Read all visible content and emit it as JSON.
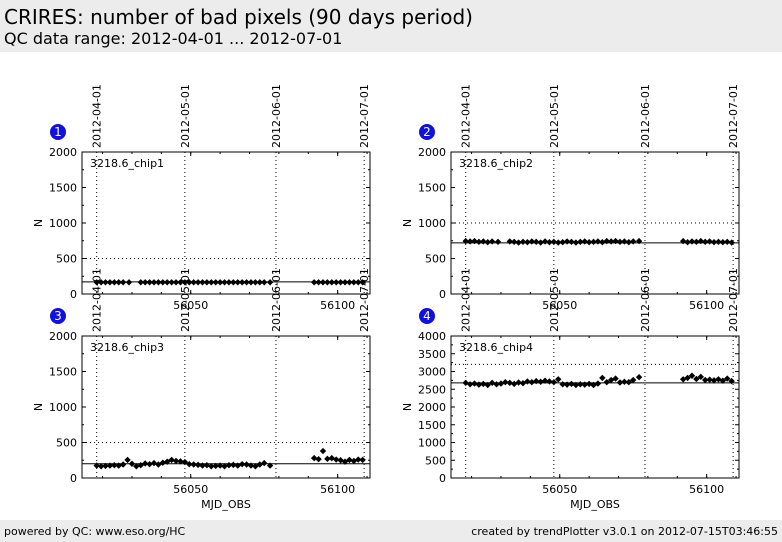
{
  "header": {
    "title": "CRIRES: number of bad pixels (90 days period)",
    "subtitle": "QC data range: 2012-04-01 ... 2012-07-01"
  },
  "footer": {
    "left": "powered by QC: www.eso.org/HC",
    "right": "created by trendPlotter v3.0.1 on 2012-07-15T03:46:55"
  },
  "colors": {
    "marker": "#000000",
    "badge": "#1010e0",
    "header_bg": "#ececec"
  },
  "chart_data": [
    {
      "type": "scatter",
      "badge": "1",
      "label": "3218.6_chip1",
      "ylabel": "N",
      "xlabel": "",
      "xlim": [
        56013,
        56111
      ],
      "ylim": [
        0,
        2000
      ],
      "yticks": [
        0,
        500,
        1000,
        1500,
        2000
      ],
      "xticks": [
        56050,
        56100
      ],
      "date_markers": [
        {
          "label": "2012-04-01",
          "x": 56018
        },
        {
          "label": "2012-05-01",
          "x": 56048
        },
        {
          "label": "2012-06-01",
          "x": 56079
        },
        {
          "label": "2012-07-01",
          "x": 56109
        }
      ],
      "reference_line": 170,
      "threshold_line": 500,
      "x": [
        56018,
        56019.5,
        56021,
        56022.5,
        56024,
        56025.5,
        56027,
        56029,
        56033,
        56034.5,
        56036,
        56037.5,
        56039,
        56040.5,
        56042,
        56043.5,
        56045,
        56046.5,
        56048,
        56049.5,
        56051,
        56052.5,
        56054,
        56055.5,
        56057,
        56058.5,
        56060,
        56061.5,
        56063,
        56064.5,
        56066,
        56067.5,
        56069,
        56070.5,
        56072,
        56073.5,
        56075,
        56077,
        56092,
        56093.5,
        56095,
        56096.5,
        56098,
        56099.5,
        56101,
        56102.5,
        56104,
        56105.5,
        56107,
        56108.5
      ],
      "y": [
        165,
        165,
        165,
        165,
        165,
        165,
        165,
        165,
        165,
        165,
        165,
        165,
        165,
        165,
        165,
        165,
        165,
        165,
        165,
        165,
        165,
        165,
        165,
        165,
        165,
        165,
        165,
        165,
        165,
        165,
        165,
        165,
        165,
        165,
        165,
        165,
        165,
        165,
        165,
        165,
        165,
        165,
        165,
        165,
        165,
        165,
        165,
        165,
        165,
        165
      ]
    },
    {
      "type": "scatter",
      "badge": "2",
      "label": "3218.6_chip2",
      "ylabel": "N",
      "xlabel": "",
      "xlim": [
        56013,
        56111
      ],
      "ylim": [
        0,
        2000
      ],
      "yticks": [
        0,
        500,
        1000,
        1500,
        2000
      ],
      "xticks": [
        56050,
        56100
      ],
      "date_markers": [
        {
          "label": "2012-04-01",
          "x": 56018
        },
        {
          "label": "2012-05-01",
          "x": 56048
        },
        {
          "label": "2012-06-01",
          "x": 56079
        },
        {
          "label": "2012-07-01",
          "x": 56109
        }
      ],
      "reference_line": 720,
      "threshold_line": 1000,
      "x": [
        56018,
        56019.5,
        56021,
        56022.5,
        56024,
        56025.5,
        56027,
        56029,
        56033,
        56034.5,
        56036,
        56037.5,
        56039,
        56040.5,
        56042,
        56043.5,
        56045,
        56046.5,
        56048,
        56049.5,
        56051,
        56052.5,
        56054,
        56055.5,
        56057,
        56058.5,
        56060,
        56061.5,
        56063,
        56064.5,
        56066,
        56067.5,
        56069,
        56070.5,
        56072,
        56073.5,
        56075,
        56077,
        56092,
        56093.5,
        56095,
        56096.5,
        56098,
        56099.5,
        56101,
        56102.5,
        56104,
        56105.5,
        56107,
        56108.5
      ],
      "y": [
        745,
        740,
        745,
        735,
        740,
        730,
        740,
        735,
        740,
        735,
        725,
        735,
        730,
        740,
        735,
        725,
        740,
        730,
        735,
        725,
        730,
        740,
        735,
        725,
        735,
        740,
        730,
        735,
        740,
        730,
        745,
        740,
        745,
        735,
        740,
        730,
        740,
        745,
        745,
        730,
        740,
        735,
        745,
        735,
        740,
        730,
        735,
        730,
        735,
        725
      ]
    },
    {
      "type": "scatter",
      "badge": "3",
      "label": "3218.6_chip3",
      "ylabel": "N",
      "xlabel": "MJD_OBS",
      "xlim": [
        56013,
        56111
      ],
      "ylim": [
        0,
        2000
      ],
      "yticks": [
        0,
        500,
        1000,
        1500,
        2000
      ],
      "xticks": [
        56050,
        56100
      ],
      "date_markers": [
        {
          "label": "2012-04-01",
          "x": 56018
        },
        {
          "label": "2012-05-01",
          "x": 56048
        },
        {
          "label": "2012-06-01",
          "x": 56079
        },
        {
          "label": "2012-07-01",
          "x": 56109
        }
      ],
      "reference_line": 200,
      "threshold_line": 500,
      "x": [
        56018,
        56019.5,
        56021,
        56022.5,
        56024,
        56025.5,
        56027,
        56028.5,
        56030,
        56031.5,
        56033,
        56034.5,
        56036,
        56037.5,
        56039,
        56040.5,
        56042,
        56043.5,
        56045,
        56046.5,
        56048,
        56049.5,
        56051,
        56052.5,
        56054,
        56055.5,
        56057,
        56058.5,
        56060,
        56061.5,
        56063,
        56064.5,
        56066,
        56067.5,
        56069,
        56070.5,
        56072,
        56073.5,
        56075,
        56077,
        56092,
        56093.5,
        56095,
        56096.5,
        56098,
        56099.5,
        56101,
        56102.5,
        56104,
        56105.5,
        56107,
        56108.5
      ],
      "y": [
        175,
        165,
        170,
        175,
        180,
        175,
        190,
        255,
        200,
        165,
        180,
        205,
        195,
        210,
        190,
        215,
        230,
        255,
        240,
        235,
        225,
        195,
        190,
        185,
        175,
        180,
        165,
        170,
        175,
        165,
        180,
        185,
        175,
        195,
        190,
        175,
        165,
        190,
        210,
        175,
        280,
        265,
        380,
        270,
        280,
        260,
        250,
        230,
        255,
        240,
        260,
        255
      ]
    },
    {
      "type": "scatter",
      "badge": "4",
      "label": "3218.6_chip4",
      "ylabel": "N",
      "xlabel": "MJD_OBS",
      "xlim": [
        56013,
        56111
      ],
      "ylim": [
        0,
        4000
      ],
      "yticks": [
        0,
        500,
        1000,
        1500,
        2000,
        2500,
        3000,
        3500,
        4000
      ],
      "xticks": [
        56050,
        56100
      ],
      "date_markers": [
        {
          "label": "2012-04-01",
          "x": 56018
        },
        {
          "label": "2012-05-01",
          "x": 56048
        },
        {
          "label": "2012-06-01",
          "x": 56079
        },
        {
          "label": "2012-07-01",
          "x": 56109
        }
      ],
      "reference_line": 2680,
      "threshold_line": 3200,
      "x": [
        56018,
        56019.5,
        56021,
        56022.5,
        56024,
        56025.5,
        56027,
        56028.5,
        56030,
        56031.5,
        56033,
        56034.5,
        56036,
        56037.5,
        56039,
        56040.5,
        56042,
        56043.5,
        56045,
        56046.5,
        56048,
        56049.5,
        56051,
        56052.5,
        56054,
        56055.5,
        56057,
        56058.5,
        56060,
        56061.5,
        56063,
        56064.5,
        56066,
        56067.5,
        56069,
        56070.5,
        56072,
        56073.5,
        56075,
        56077,
        56092,
        56093.5,
        56095,
        56096.5,
        56098,
        56099.5,
        56101,
        56102.5,
        56104,
        56105.5,
        56107,
        56108.5
      ],
      "y": [
        2680,
        2640,
        2660,
        2630,
        2650,
        2620,
        2680,
        2640,
        2660,
        2700,
        2680,
        2650,
        2690,
        2670,
        2720,
        2700,
        2730,
        2710,
        2740,
        2720,
        2700,
        2780,
        2640,
        2630,
        2650,
        2620,
        2640,
        2630,
        2650,
        2620,
        2660,
        2820,
        2700,
        2760,
        2800,
        2690,
        2710,
        2700,
        2760,
        2840,
        2780,
        2820,
        2880,
        2790,
        2850,
        2760,
        2770,
        2750,
        2780,
        2740,
        2800,
        2730
      ]
    }
  ]
}
